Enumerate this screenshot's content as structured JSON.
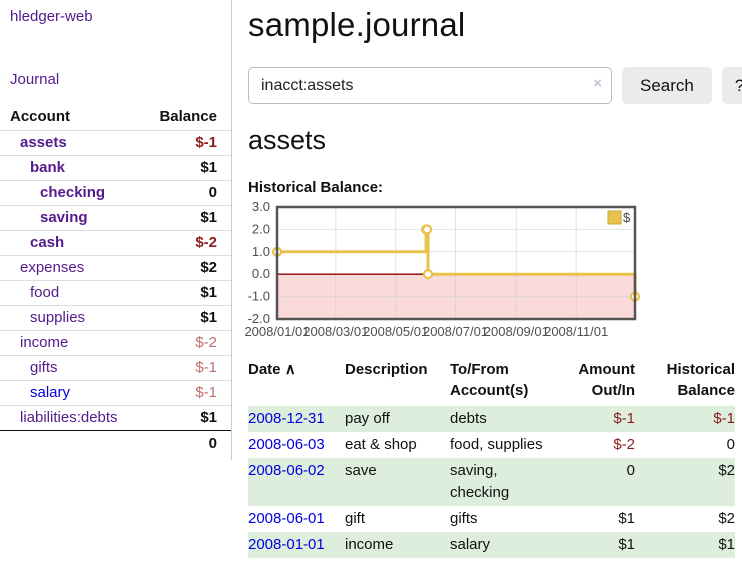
{
  "app": {
    "brand": "hledger-web"
  },
  "sidebar": {
    "journal_label": "Journal",
    "headers": {
      "account": "Account",
      "balance": "Balance"
    },
    "accounts": [
      {
        "name": "assets",
        "indent": 1,
        "bold": true,
        "balance": "$-1",
        "neg": "strong"
      },
      {
        "name": "bank",
        "indent": 2,
        "bold": true,
        "balance": "$1"
      },
      {
        "name": "checking",
        "indent": 3,
        "bold": true,
        "balance": "0"
      },
      {
        "name": "saving",
        "indent": 3,
        "bold": true,
        "balance": "$1"
      },
      {
        "name": "cash",
        "indent": 2,
        "bold": true,
        "balance": "$-2",
        "neg": "strong"
      },
      {
        "name": "expenses",
        "indent": 1,
        "bold": false,
        "balance": "$2"
      },
      {
        "name": "food",
        "indent": 2,
        "bold": false,
        "balance": "$1"
      },
      {
        "name": "supplies",
        "indent": 2,
        "bold": false,
        "balance": "$1"
      },
      {
        "name": "income",
        "indent": 1,
        "bold": false,
        "balance": "$-2",
        "neg": "soft"
      },
      {
        "name": "gifts",
        "indent": 2,
        "bold": false,
        "balance": "$-1",
        "neg": "soft"
      },
      {
        "name": "salary",
        "indent": 2,
        "bold": false,
        "balance": "$-1",
        "neg": "soft",
        "blue": true
      },
      {
        "name": "liabilities:debts",
        "indent": 1,
        "bold": false,
        "balance": "$1"
      }
    ],
    "total": "0"
  },
  "header": {
    "title": "sample.journal"
  },
  "search": {
    "value": "inacct:assets",
    "clear_icon": "×",
    "button": "Search",
    "help_button": "?"
  },
  "main": {
    "heading": "assets",
    "chart_label": "Historical Balance:"
  },
  "chart_data": {
    "type": "line",
    "style": "step",
    "title": "Historical Balance:",
    "legend_position": "top-right",
    "grid": true,
    "ylim": [
      -2,
      3
    ],
    "xlim_days": [
      0,
      365
    ],
    "y_ticks": [
      "3.0",
      "2.0",
      "1.0",
      "0.0",
      "-1.0",
      "-2.0"
    ],
    "x_ticks": [
      {
        "day": 0,
        "label": "2008/01/01"
      },
      {
        "day": 60,
        "label": "2008/03/01"
      },
      {
        "day": 121,
        "label": "2008/05/01"
      },
      {
        "day": 182,
        "label": "2008/07/01"
      },
      {
        "day": 244,
        "label": "2008/09/01"
      },
      {
        "day": 305,
        "label": "2008/11/01"
      }
    ],
    "series": [
      {
        "name": "$",
        "points": [
          {
            "date": "2008-01-01",
            "day": 0,
            "value": 1
          },
          {
            "date": "2008-06-01",
            "day": 152,
            "value": 2
          },
          {
            "date": "2008-06-02",
            "day": 153,
            "value": 2
          },
          {
            "date": "2008-06-03",
            "day": 154,
            "value": 0
          },
          {
            "date": "2008-12-31",
            "day": 365,
            "value": -1
          }
        ]
      }
    ],
    "colors": {
      "line": "#e8c24d",
      "legend_swatch_border": "#c7a93f",
      "negative_fill": "#fbdada",
      "zero_line": "#8b0000",
      "grid": "#cccccc",
      "border": "#545454"
    }
  },
  "register": {
    "headers": {
      "date": "Date",
      "sort_icon": "∧",
      "description": "Description",
      "account_line1": "To/From",
      "account_line2": "Account(s)",
      "amount_line1": "Amount",
      "amount_line2": "Out/In",
      "balance_line1": "Historical",
      "balance_line2": "Balance"
    },
    "rows": [
      {
        "date": "2008-12-31",
        "desc": "pay off",
        "accts": "debts",
        "amount": "$-1",
        "amount_neg": true,
        "balance": "$-1",
        "balance_neg": true
      },
      {
        "date": "2008-06-03",
        "desc": "eat & shop",
        "accts": "food, supplies",
        "amount": "$-2",
        "amount_neg": true,
        "balance": "0",
        "balance_neg": false
      },
      {
        "date": "2008-06-02",
        "desc": "save",
        "accts": "saving, checking",
        "amount": "0",
        "amount_neg": false,
        "balance": "$2",
        "balance_neg": false
      },
      {
        "date": "2008-06-01",
        "desc": "gift",
        "accts": "gifts",
        "amount": "$1",
        "amount_neg": false,
        "balance": "$2",
        "balance_neg": false
      },
      {
        "date": "2008-01-01",
        "desc": "income",
        "accts": "salary",
        "amount": "$1",
        "amount_neg": false,
        "balance": "$1",
        "balance_neg": false
      }
    ]
  }
}
